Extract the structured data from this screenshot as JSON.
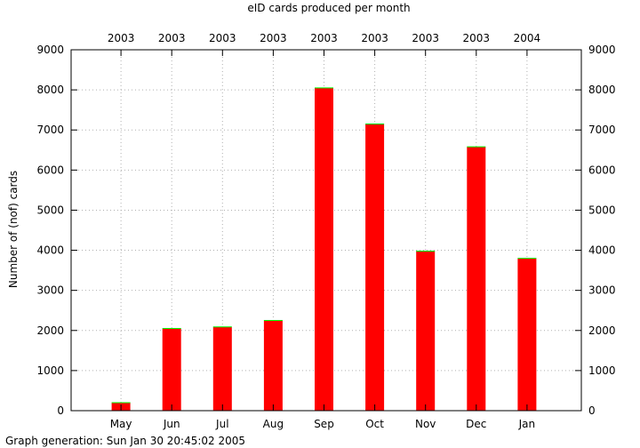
{
  "chart_data": {
    "type": "bar",
    "title": "eID cards produced per month",
    "ylabel": "Number of (nof) cards",
    "footer": "Graph generation: Sun Jan 30 20:45:02 2005",
    "categories": [
      "May",
      "Jun",
      "Jul",
      "Aug",
      "Sep",
      "Oct",
      "Nov",
      "Dec",
      "Jan"
    ],
    "years": [
      "2003",
      "2003",
      "2003",
      "2003",
      "2003",
      "2003",
      "2003",
      "2003",
      "2004"
    ],
    "values": [
      200,
      2050,
      2090,
      2250,
      8050,
      7150,
      3980,
      6580,
      3800
    ],
    "ylim": [
      0,
      9000
    ],
    "yticks": [
      0,
      1000,
      2000,
      3000,
      4000,
      5000,
      6000,
      7000,
      8000,
      9000
    ],
    "grid": true,
    "bar_color": "#ff0000",
    "cap_color": "#00ff00"
  }
}
